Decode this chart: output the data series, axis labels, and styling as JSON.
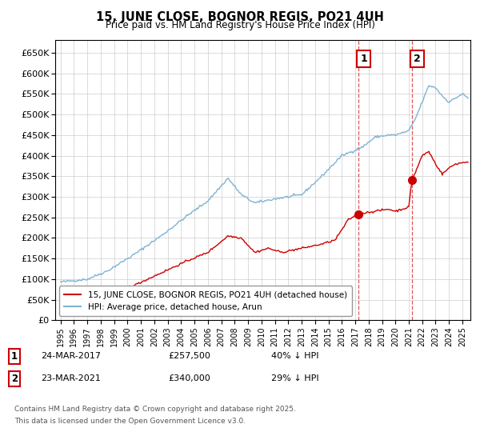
{
  "title": "15, JUNE CLOSE, BOGNOR REGIS, PO21 4UH",
  "subtitle": "Price paid vs. HM Land Registry's House Price Index (HPI)",
  "legend_line1": "15, JUNE CLOSE, BOGNOR REGIS, PO21 4UH (detached house)",
  "legend_line2": "HPI: Average price, detached house, Arun",
  "annotation1_label": "1",
  "annotation1_date": "24-MAR-2017",
  "annotation1_price": "£257,500",
  "annotation1_note": "40% ↓ HPI",
  "annotation1_year": 2017.23,
  "annotation1_value": 257500,
  "annotation2_label": "2",
  "annotation2_date": "23-MAR-2021",
  "annotation2_price": "£340,000",
  "annotation2_note": "29% ↓ HPI",
  "annotation2_year": 2021.23,
  "annotation2_value": 340000,
  "line_color_red": "#cc0000",
  "line_color_blue": "#7fb3d3",
  "dashed_line_color": "#dd4444",
  "annotation_box_color": "#cc0000",
  "footer_line1": "Contains HM Land Registry data © Crown copyright and database right 2025.",
  "footer_line2": "This data is licensed under the Open Government Licence v3.0.",
  "ylim_min": 0,
  "ylim_max": 680000,
  "background_color": "#ffffff",
  "grid_color": "#cccccc",
  "hpi_anchors_x": [
    1995.0,
    1997.0,
    1998.5,
    2000.5,
    2002.5,
    2004.5,
    2006.0,
    2007.5,
    2008.5,
    2009.5,
    2011.0,
    2013.0,
    2014.5,
    2016.0,
    2017.5,
    2018.5,
    2019.5,
    2020.0,
    2021.0,
    2021.5,
    2022.0,
    2022.5,
    2023.0,
    2023.5,
    2024.0,
    2024.5,
    2025.0,
    2025.4
  ],
  "hpi_anchors_y": [
    93000,
    100000,
    120000,
    160000,
    205000,
    255000,
    290000,
    345000,
    305000,
    285000,
    295000,
    305000,
    350000,
    400000,
    420000,
    445000,
    450000,
    450000,
    460000,
    490000,
    530000,
    570000,
    565000,
    545000,
    530000,
    540000,
    550000,
    540000
  ],
  "red_anchors_x": [
    1995.0,
    1997.0,
    1998.5,
    2000.5,
    2002.5,
    2004.5,
    2006.0,
    2007.5,
    2008.5,
    2009.5,
    2010.5,
    2011.5,
    2013.0,
    2014.5,
    2015.5,
    2016.5,
    2017.23,
    2017.5,
    2018.5,
    2019.5,
    2020.0,
    2021.0,
    2021.23,
    2021.5,
    2022.0,
    2022.5,
    2023.0,
    2023.5,
    2024.0,
    2024.5,
    2025.4
  ],
  "red_anchors_y": [
    50000,
    60000,
    70000,
    85000,
    115000,
    145000,
    165000,
    205000,
    200000,
    165000,
    175000,
    165000,
    175000,
    185000,
    195000,
    245000,
    257500,
    260000,
    265000,
    270000,
    265000,
    275000,
    340000,
    360000,
    400000,
    410000,
    380000,
    355000,
    370000,
    380000,
    385000
  ]
}
